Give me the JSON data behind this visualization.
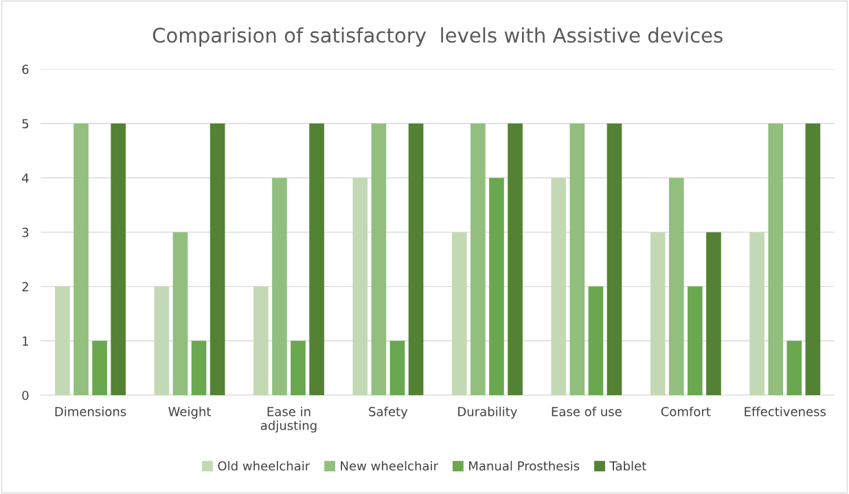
{
  "chart_data": {
    "type": "bar",
    "title": "Comparision of satisfactory  levels with Assistive devices",
    "categories": [
      "Dimensions",
      "Weight",
      "Ease in\nadjusting",
      "Safety",
      "Durability",
      "Ease of use",
      "Comfort",
      "Effectiveness"
    ],
    "series": [
      {
        "name": "Old wheelchair",
        "color": "#c3d9b5",
        "values": [
          2,
          2,
          2,
          4,
          3,
          4,
          3,
          3
        ]
      },
      {
        "name": "New wheelchair",
        "color": "#93bf7e",
        "values": [
          5,
          3,
          4,
          5,
          5,
          5,
          4,
          5
        ]
      },
      {
        "name": "Manual Prosthesis",
        "color": "#6aa84f",
        "values": [
          1,
          1,
          1,
          1,
          4,
          2,
          2,
          1
        ]
      },
      {
        "name": "Tablet",
        "color": "#548235",
        "values": [
          5,
          5,
          5,
          5,
          5,
          5,
          3,
          5
        ]
      }
    ],
    "ylim": [
      0,
      6
    ],
    "yticks": [
      0,
      1,
      2,
      3,
      4,
      5,
      6
    ],
    "grid": "y",
    "legend": "bottom"
  }
}
